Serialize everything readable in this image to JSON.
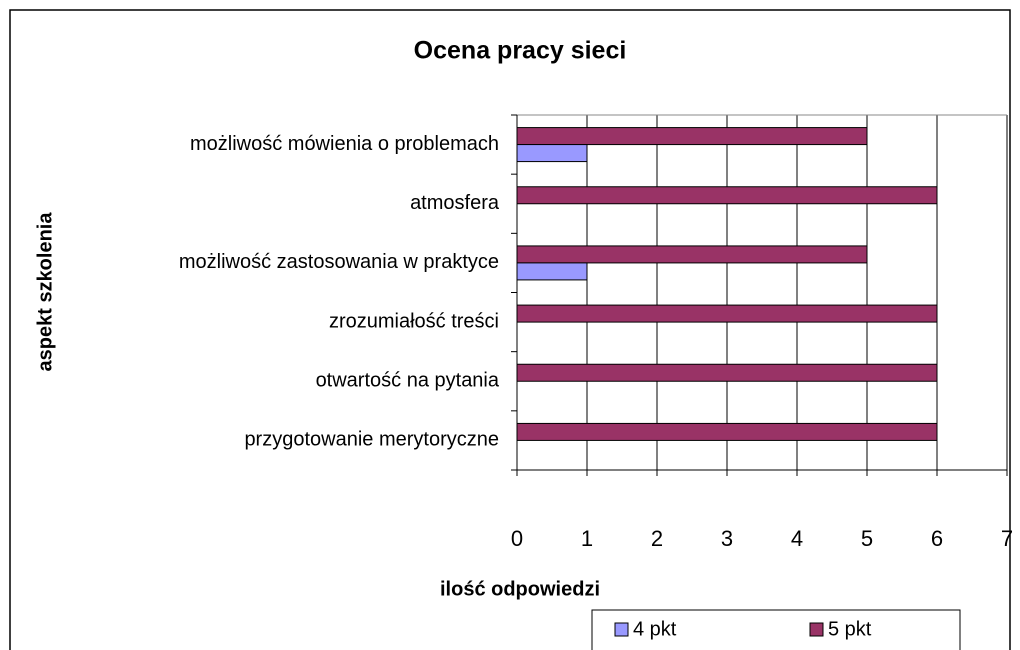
{
  "chart_data": {
    "type": "bar",
    "orientation": "horizontal",
    "title": "Ocena pracy sieci",
    "xlabel": "ilość odpowiedzi",
    "ylabel": "aspekt szkolenia",
    "categories": [
      "możliwość mówienia o problemach",
      "atmosfera",
      "możliwość zastosowania w praktyce",
      "zrozumiałość treści",
      "otwartość na pytania",
      "przygotowanie merytoryczne"
    ],
    "series": [
      {
        "name": "4 pkt",
        "color": "#9999ff",
        "values": [
          1,
          0,
          1,
          0,
          0,
          0
        ]
      },
      {
        "name": "5 pkt",
        "color": "#993366",
        "values": [
          5,
          6,
          5,
          6,
          6,
          6
        ]
      }
    ],
    "xlim": [
      0,
      7
    ],
    "xticks": [
      0,
      1,
      2,
      3,
      4,
      5,
      6,
      7
    ],
    "grid": true,
    "legend": "bottom"
  }
}
